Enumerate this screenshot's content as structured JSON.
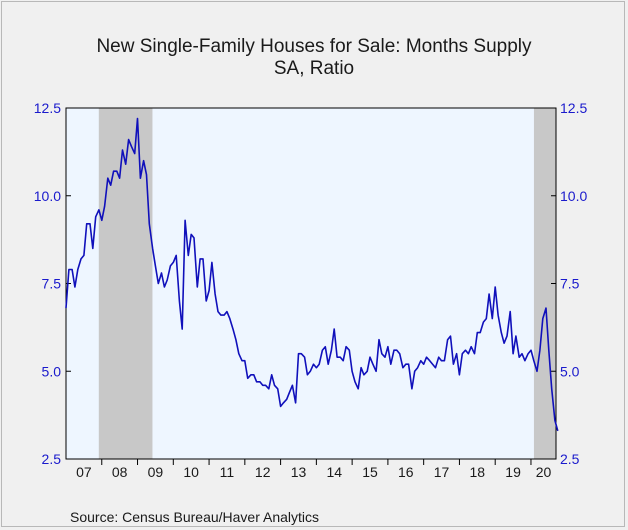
{
  "chart_data": {
    "type": "line",
    "title": "New Single-Family Houses for Sale: Months Supply",
    "subtitle": "SA, Ratio",
    "source": "Source:  Census Bureau/Haver Analytics",
    "ylim": [
      2.5,
      12.5
    ],
    "yticks": [
      "2.5",
      "5.0",
      "7.5",
      "10.0",
      "12.5"
    ],
    "ytick_values": [
      2.5,
      5.0,
      7.5,
      10.0,
      12.5
    ],
    "xlim": [
      2007.0,
      2020.7
    ],
    "xtick_labels": [
      "07",
      "08",
      "09",
      "10",
      "11",
      "12",
      "13",
      "14",
      "15",
      "16",
      "17",
      "18",
      "19",
      "20"
    ],
    "recessions": [
      [
        2007.917,
        2009.417
      ],
      [
        2020.083,
        2020.7
      ]
    ],
    "colors": {
      "line": "#1010bb",
      "plot_bg": "#eef6ff",
      "recession": "#c8c8c8",
      "tick_label": "#1a1acc"
    },
    "series": [
      {
        "values": [
          [
            2007.0,
            6.8
          ],
          [
            2007.08,
            7.9
          ],
          [
            2007.17,
            7.9
          ],
          [
            2007.25,
            7.4
          ],
          [
            2007.33,
            7.9
          ],
          [
            2007.42,
            8.2
          ],
          [
            2007.5,
            8.3
          ],
          [
            2007.58,
            9.2
          ],
          [
            2007.67,
            9.2
          ],
          [
            2007.75,
            8.5
          ],
          [
            2007.83,
            9.4
          ],
          [
            2007.92,
            9.6
          ],
          [
            2008.0,
            9.3
          ],
          [
            2008.08,
            9.7
          ],
          [
            2008.17,
            10.5
          ],
          [
            2008.25,
            10.3
          ],
          [
            2008.33,
            10.7
          ],
          [
            2008.42,
            10.7
          ],
          [
            2008.5,
            10.5
          ],
          [
            2008.58,
            11.3
          ],
          [
            2008.67,
            10.9
          ],
          [
            2008.75,
            11.6
          ],
          [
            2008.83,
            11.4
          ],
          [
            2008.92,
            11.2
          ],
          [
            2009.0,
            12.2
          ],
          [
            2009.08,
            10.5
          ],
          [
            2009.17,
            11.0
          ],
          [
            2009.25,
            10.6
          ],
          [
            2009.33,
            9.2
          ],
          [
            2009.42,
            8.5
          ],
          [
            2009.5,
            8.0
          ],
          [
            2009.58,
            7.5
          ],
          [
            2009.67,
            7.8
          ],
          [
            2009.75,
            7.4
          ],
          [
            2009.83,
            7.6
          ],
          [
            2009.92,
            8.0
          ],
          [
            2010.0,
            8.1
          ],
          [
            2010.08,
            8.3
          ],
          [
            2010.17,
            7.0
          ],
          [
            2010.25,
            6.2
          ],
          [
            2010.33,
            9.3
          ],
          [
            2010.42,
            8.3
          ],
          [
            2010.5,
            8.9
          ],
          [
            2010.58,
            8.8
          ],
          [
            2010.67,
            7.4
          ],
          [
            2010.75,
            8.2
          ],
          [
            2010.83,
            8.2
          ],
          [
            2010.92,
            7.0
          ],
          [
            2011.0,
            7.3
          ],
          [
            2011.08,
            8.1
          ],
          [
            2011.17,
            7.2
          ],
          [
            2011.25,
            6.7
          ],
          [
            2011.33,
            6.6
          ],
          [
            2011.42,
            6.6
          ],
          [
            2011.5,
            6.7
          ],
          [
            2011.58,
            6.5
          ],
          [
            2011.67,
            6.2
          ],
          [
            2011.75,
            5.9
          ],
          [
            2011.83,
            5.5
          ],
          [
            2011.92,
            5.3
          ],
          [
            2012.0,
            5.3
          ],
          [
            2012.08,
            4.8
          ],
          [
            2012.17,
            4.9
          ],
          [
            2012.25,
            4.9
          ],
          [
            2012.33,
            4.7
          ],
          [
            2012.42,
            4.7
          ],
          [
            2012.5,
            4.6
          ],
          [
            2012.58,
            4.6
          ],
          [
            2012.67,
            4.5
          ],
          [
            2012.75,
            4.9
          ],
          [
            2012.83,
            4.6
          ],
          [
            2012.92,
            4.5
          ],
          [
            2013.0,
            4.0
          ],
          [
            2013.08,
            4.1
          ],
          [
            2013.17,
            4.2
          ],
          [
            2013.25,
            4.4
          ],
          [
            2013.33,
            4.6
          ],
          [
            2013.42,
            4.1
          ],
          [
            2013.5,
            5.5
          ],
          [
            2013.58,
            5.5
          ],
          [
            2013.67,
            5.4
          ],
          [
            2013.75,
            4.9
          ],
          [
            2013.83,
            5.0
          ],
          [
            2013.92,
            5.2
          ],
          [
            2014.0,
            5.1
          ],
          [
            2014.08,
            5.2
          ],
          [
            2014.17,
            5.6
          ],
          [
            2014.25,
            5.7
          ],
          [
            2014.33,
            5.2
          ],
          [
            2014.42,
            5.6
          ],
          [
            2014.5,
            6.2
          ],
          [
            2014.58,
            5.4
          ],
          [
            2014.67,
            5.4
          ],
          [
            2014.75,
            5.3
          ],
          [
            2014.83,
            5.7
          ],
          [
            2014.92,
            5.6
          ],
          [
            2015.0,
            5.0
          ],
          [
            2015.08,
            4.7
          ],
          [
            2015.17,
            4.5
          ],
          [
            2015.25,
            5.1
          ],
          [
            2015.33,
            4.9
          ],
          [
            2015.42,
            5.0
          ],
          [
            2015.5,
            5.4
          ],
          [
            2015.58,
            5.2
          ],
          [
            2015.67,
            5.0
          ],
          [
            2015.75,
            5.9
          ],
          [
            2015.83,
            5.5
          ],
          [
            2015.92,
            5.4
          ],
          [
            2016.0,
            5.7
          ],
          [
            2016.08,
            5.2
          ],
          [
            2016.17,
            5.6
          ],
          [
            2016.25,
            5.6
          ],
          [
            2016.33,
            5.5
          ],
          [
            2016.42,
            5.1
          ],
          [
            2016.5,
            5.2
          ],
          [
            2016.58,
            5.2
          ],
          [
            2016.67,
            4.5
          ],
          [
            2016.75,
            5.0
          ],
          [
            2016.83,
            5.1
          ],
          [
            2016.92,
            5.3
          ],
          [
            2017.0,
            5.2
          ],
          [
            2017.08,
            5.4
          ],
          [
            2017.17,
            5.3
          ],
          [
            2017.25,
            5.2
          ],
          [
            2017.33,
            5.1
          ],
          [
            2017.42,
            5.4
          ],
          [
            2017.5,
            5.3
          ],
          [
            2017.58,
            5.3
          ],
          [
            2017.67,
            5.9
          ],
          [
            2017.75,
            6.0
          ],
          [
            2017.83,
            5.2
          ],
          [
            2017.92,
            5.5
          ],
          [
            2018.0,
            4.9
          ],
          [
            2018.08,
            5.5
          ],
          [
            2018.17,
            5.6
          ],
          [
            2018.25,
            5.5
          ],
          [
            2018.33,
            5.7
          ],
          [
            2018.42,
            5.5
          ],
          [
            2018.5,
            6.1
          ],
          [
            2018.58,
            6.1
          ],
          [
            2018.67,
            6.4
          ],
          [
            2018.75,
            6.5
          ],
          [
            2018.83,
            7.2
          ],
          [
            2018.92,
            6.5
          ],
          [
            2019.0,
            7.4
          ],
          [
            2019.08,
            6.6
          ],
          [
            2019.17,
            6.1
          ],
          [
            2019.25,
            5.8
          ],
          [
            2019.33,
            6.0
          ],
          [
            2019.42,
            6.7
          ],
          [
            2019.5,
            5.5
          ],
          [
            2019.58,
            6.0
          ],
          [
            2019.67,
            5.4
          ],
          [
            2019.75,
            5.5
          ],
          [
            2019.83,
            5.3
          ],
          [
            2019.92,
            5.5
          ],
          [
            2020.0,
            5.6
          ],
          [
            2020.08,
            5.3
          ],
          [
            2020.17,
            5.0
          ],
          [
            2020.25,
            5.6
          ],
          [
            2020.33,
            6.5
          ],
          [
            2020.42,
            6.8
          ],
          [
            2020.5,
            5.6
          ],
          [
            2020.58,
            4.5
          ],
          [
            2020.67,
            3.6
          ],
          [
            2020.75,
            3.3
          ]
        ]
      }
    ]
  }
}
